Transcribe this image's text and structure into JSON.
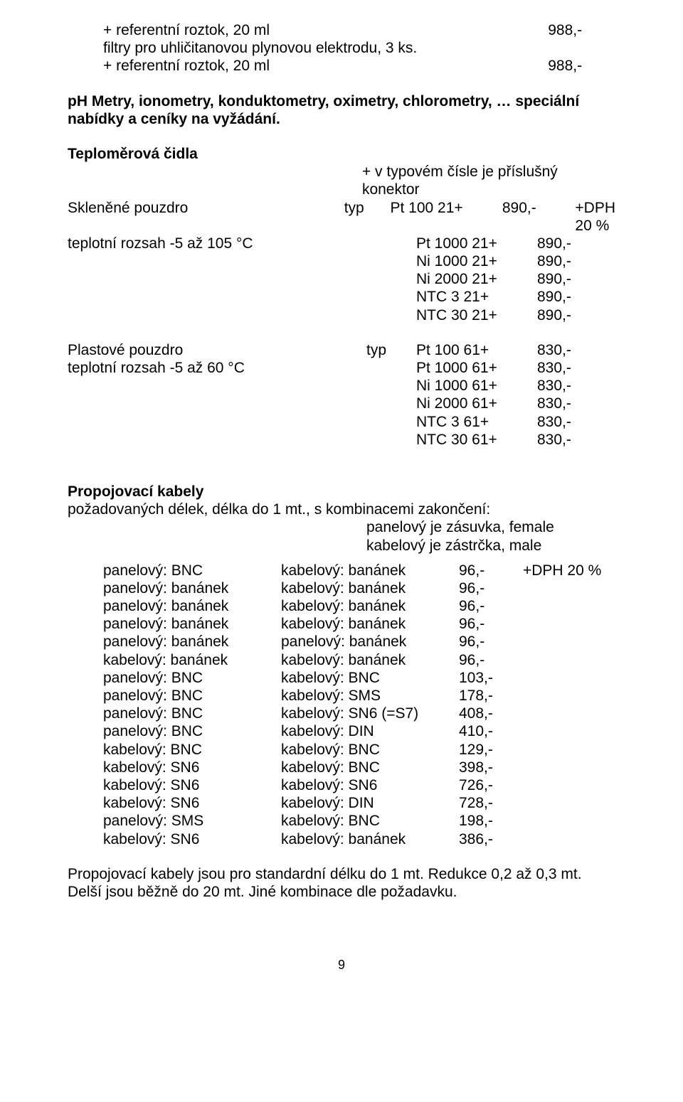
{
  "top": {
    "line1_left": "+ referentní roztok, 20 ml",
    "line1_price": "988,-",
    "line2": "filtry pro uhličitanovou plynovou elektrodu, 3 ks.",
    "line3_left": "+ referentní roztok, 20 ml",
    "line3_price": "988,-"
  },
  "ph_heading": "pH Metry, ionometry, konduktometry, oximetry, chlorometry, … speciální nabídky a ceníky na vyžádání.",
  "teplo": {
    "heading": "Teploměrová čidla",
    "subnote": "+ v typovém čísle je příslušný konektor",
    "g1_left": "Skleněné pouzdro",
    "g1_typ": "typ",
    "g2_left": "teplotní rozsah -5 až 105 °C",
    "dph_label": "+DPH 20 %",
    "glass_rows": [
      {
        "code": "Pt 100 21+",
        "price": "890,-"
      },
      {
        "code": "Pt 1000 21+",
        "price": "890,-"
      },
      {
        "code": "Ni 1000 21+",
        "price": "890,-"
      },
      {
        "code": "Ni 2000 21+",
        "price": "890,-"
      },
      {
        "code": "NTC 3 21+",
        "price": "890,-"
      },
      {
        "code": "NTC 30 21+",
        "price": "890,-"
      }
    ],
    "p1_left": "Plastové pouzdro",
    "p1_typ": "typ",
    "p2_left": "teplotní rozsah -5 až 60 °C",
    "plast_rows": [
      {
        "code": "Pt 100 61+",
        "price": "830,-"
      },
      {
        "code": "Pt 1000 61+",
        "price": "830,-"
      },
      {
        "code": "Ni 1000 61+",
        "price": "830,-"
      },
      {
        "code": "Ni 2000 61+",
        "price": "830,-"
      },
      {
        "code": "NTC 3 61+",
        "price": "830,-"
      },
      {
        "code": "NTC 30 61+",
        "price": "830,-"
      }
    ]
  },
  "cables": {
    "heading": "Propojovací kabely",
    "sub1": "požadovaných délek, délka do 1 mt., s kombinacemi zakončení:",
    "note1": "panelový je zásuvka, female",
    "note2": "kabelový je zástrčka, male",
    "dph_label": "+DPH 20 %",
    "rows": [
      {
        "a": "panelový: BNC",
        "b": "kabelový: banánek",
        "p": "96,-",
        "dph": true
      },
      {
        "a": "panelový: banánek",
        "b": "kabelový: banánek",
        "p": "96,-"
      },
      {
        "a": "panelový: banánek",
        "b": "kabelový: banánek",
        "p": "96,-"
      },
      {
        "a": "panelový: banánek",
        "b": "kabelový: banánek",
        "p": "96,-"
      },
      {
        "a": "panelový: banánek",
        "b": "panelový: banánek",
        "p": "96,-"
      },
      {
        "a": "kabelový: banánek",
        "b": "kabelový: banánek",
        "p": "96,-"
      },
      {
        "a": "panelový: BNC",
        "b": "kabelový: BNC",
        "p": "103,-"
      },
      {
        "a": "panelový: BNC",
        "b": "kabelový: SMS",
        "p": "178,-"
      },
      {
        "a": "panelový: BNC",
        "b": "kabelový: SN6 (=S7)",
        "p": "408,-"
      },
      {
        "a": "panelový: BNC",
        "b": "kabelový: DIN",
        "p": "410,-"
      },
      {
        "a": "kabelový: BNC",
        "b": "kabelový: BNC",
        "p": "129,-"
      },
      {
        "a": "kabelový: SN6",
        "b": "kabelový: BNC",
        "p": "398,-"
      },
      {
        "a": "kabelový: SN6",
        "b": "kabelový: SN6",
        "p": "726,-"
      },
      {
        "a": "kabelový: SN6",
        "b": "kabelový: DIN",
        "p": "728,-"
      },
      {
        "a": "panelový: SMS",
        "b": "kabelový: BNC",
        "p": "198,-"
      },
      {
        "a": "kabelový: SN6",
        "b": "kabelový: banánek",
        "p": "386,-"
      }
    ]
  },
  "footer1": "Propojovací kabely jsou pro standardní délku do 1 mt. Redukce 0,2 až 0,3 mt.",
  "footer2": "Delší jsou běžně do 20 mt. Jiné kombinace dle požadavku.",
  "page": "9"
}
